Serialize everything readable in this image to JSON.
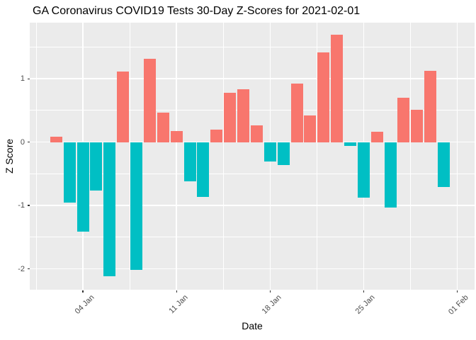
{
  "chart_data": {
    "type": "bar",
    "title": "GA Coronavirus COVID19 Tests 30-Day Z-Scores for 2021-02-01",
    "xlabel": "Date",
    "ylabel": "Z Score",
    "legend": "none",
    "grid": true,
    "x": [
      "2021-01-02",
      "2021-01-03",
      "2021-01-04",
      "2021-01-05",
      "2021-01-06",
      "2021-01-07",
      "2021-01-08",
      "2021-01-09",
      "2021-01-10",
      "2021-01-11",
      "2021-01-12",
      "2021-01-13",
      "2021-01-14",
      "2021-01-15",
      "2021-01-16",
      "2021-01-17",
      "2021-01-18",
      "2021-01-19",
      "2021-01-20",
      "2021-01-21",
      "2021-01-22",
      "2021-01-23",
      "2021-01-24",
      "2021-01-25",
      "2021-01-26",
      "2021-01-27",
      "2021-01-28",
      "2021-01-29",
      "2021-01-30",
      "2021-01-31"
    ],
    "values": [
      0.09,
      -0.96,
      -1.41,
      -0.77,
      -2.12,
      1.11,
      -2.02,
      1.31,
      0.47,
      0.17,
      -0.62,
      -0.87,
      0.2,
      0.78,
      0.84,
      0.27,
      -0.31,
      -0.36,
      0.92,
      0.42,
      1.42,
      1.7,
      -0.06,
      -0.88,
      0.16,
      -1.03,
      0.7,
      0.51,
      1.12,
      -0.71
    ],
    "x_ticks": [
      {
        "label": "04 Jan",
        "day_index": 2
      },
      {
        "label": "11 Jan",
        "day_index": 9
      },
      {
        "label": "18 Jan",
        "day_index": 16
      },
      {
        "label": "25 Jan",
        "day_index": 23
      },
      {
        "label": "01 Feb",
        "day_index": 30
      }
    ],
    "x_minor_day_offsets": [
      -1.5,
      5.5,
      12.5,
      19.5,
      26.5
    ],
    "y_ticks": [
      1,
      0,
      -1,
      -2
    ],
    "y_minor_ticks": [
      1.5,
      0.5,
      -0.5,
      -1.5
    ],
    "ylim": [
      -2.33,
      1.89
    ],
    "bar_colors": {
      "positive": "#F8766D",
      "negative": "#00BFC4"
    },
    "panel_bg": "#EBEBEB",
    "grid_color": "#FFFFFF",
    "axis_text_color": "#4D4D4D",
    "tick_color": "#333333",
    "title_color": "#000000"
  }
}
